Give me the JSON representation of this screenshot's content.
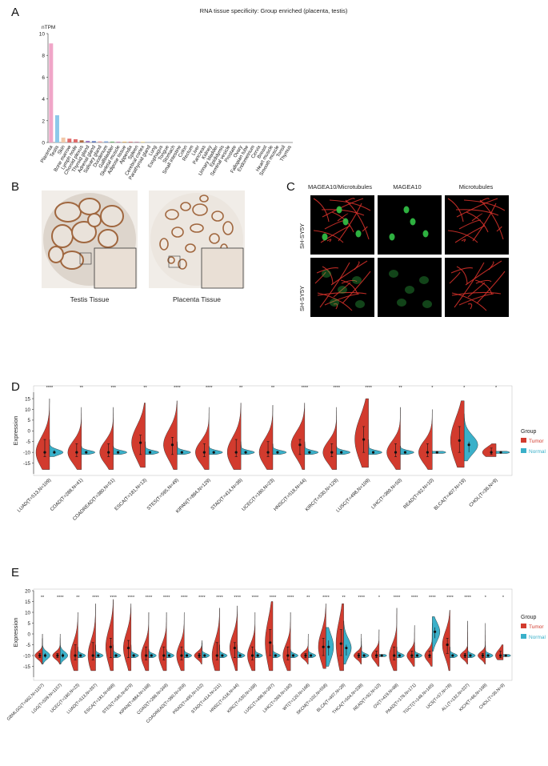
{
  "panels": {
    "a": "A",
    "b": "B",
    "c": "C",
    "d": "D",
    "e": "E"
  },
  "panel_b": {
    "captions": [
      "Testis Tissue",
      "Placenta Tissue"
    ],
    "colors": {
      "tissue": "#a0673f",
      "background": "#f1ede8",
      "stain": "#ddd5cc"
    }
  },
  "panel_c": {
    "column_headers": [
      "MAGEA10/Microtubules",
      "MAGEA10",
      "Microtubules"
    ],
    "row_labels": [
      "SH-SY5Y",
      "SH-SY5Y"
    ],
    "colors": {
      "red": "#d8312a",
      "green": "#33c447",
      "bg": "#000000"
    }
  },
  "legend": {
    "title": "Group",
    "tumor": "Tumor",
    "normal": "Normal"
  },
  "colors": {
    "tumor": "#d23b2e",
    "normal": "#3ab0c9"
  },
  "chart_data": [
    {
      "type": "bar",
      "title": "RNA tissue specificity: Group enriched (placenta, testis)",
      "ylabel": "nTPM",
      "ylim": [
        0,
        10
      ],
      "yticks": [
        0,
        2,
        4,
        6,
        8,
        10
      ],
      "categories": [
        "Placenta",
        "Testis",
        "Skin",
        "Bone marrow",
        "Lymph node",
        "Choroid plexus",
        "Thyroid gland",
        "Adrenal gland",
        "Salivary gland",
        "Duodenum",
        "Gallbladder",
        "Skeletal muscle",
        "Adipose tissue",
        "Appendix",
        "Spleen",
        "Cerebral cortex",
        "Parathyroid gland",
        "Lung",
        "Esophagus",
        "Tongue",
        "Stomach",
        "Small intestine",
        "Colon",
        "Rectum",
        "Liver",
        "Pancreas",
        "Kidney",
        "Urinary bladder",
        "Epididymis",
        "Seminal vesicle",
        "Prostate",
        "Ovary",
        "Fallopian tube",
        "Endometrium",
        "Cervix",
        "Breast",
        "Heart muscle",
        "Smooth muscle",
        "Tonsil",
        "Thymus"
      ],
      "values": [
        9.1,
        2.5,
        0.45,
        0.35,
        0.3,
        0.2,
        0.15,
        0.12,
        0.1,
        0.1,
        0.08,
        0.07,
        0.07,
        0.06,
        0.05,
        0.04,
        0.03,
        0,
        0,
        0,
        0,
        0,
        0,
        0,
        0,
        0,
        0,
        0,
        0,
        0,
        0,
        0,
        0,
        0,
        0,
        0,
        0,
        0,
        0,
        0
      ],
      "colors": [
        "#f0a6c8",
        "#8cc8ea",
        "#f2c8a8",
        "#e06a6a",
        "#e06a6a",
        "#b06a40",
        "#9a78c0",
        "#5570b8",
        "#e8a0a0",
        "#7aa0d8",
        "#70b070",
        "#c080b0",
        "#e0b060",
        "#d06060",
        "#a06080",
        "#e0c040",
        "#80a0c0",
        "#ccc",
        "#ccc",
        "#ccc",
        "#ccc",
        "#ccc",
        "#ccc",
        "#ccc",
        "#ccc",
        "#ccc",
        "#ccc",
        "#ccc",
        "#ccc",
        "#ccc",
        "#ccc",
        "#ccc",
        "#ccc",
        "#ccc",
        "#ccc",
        "#ccc",
        "#ccc",
        "#ccc",
        "#ccc",
        "#ccc"
      ]
    },
    {
      "type": "violin",
      "ylabel": "Expression",
      "ylim": [
        -20,
        18
      ],
      "yticks": [
        -15,
        -10,
        -5,
        0,
        5,
        10,
        15
      ],
      "series": [
        {
          "name": "Tumor"
        },
        {
          "name": "Normal"
        }
      ],
      "groups": [
        {
          "label": "LUAD(T=513,N=109)",
          "sig": "****",
          "t_med": -10,
          "t_q1": -12,
          "t_q3": -4,
          "t_min": -18,
          "t_max": 15,
          "n_med": -10,
          "n_q1": -10.5,
          "n_q3": -9,
          "n_min": -12,
          "n_max": -4
        },
        {
          "label": "COAD(T=288,N=41)",
          "sig": "**",
          "t_med": -10,
          "t_q1": -12,
          "t_q3": -6,
          "t_min": -18,
          "t_max": 11,
          "n_med": -10,
          "n_q1": -10.5,
          "n_q3": -9.5,
          "n_min": -11,
          "n_max": -7
        },
        {
          "label": "COADREAD(T=380,N=51)",
          "sig": "***",
          "t_med": -10,
          "t_q1": -12,
          "t_q3": -6,
          "t_min": -18,
          "t_max": 11,
          "n_med": -10,
          "n_q1": -10.5,
          "n_q3": -9.5,
          "n_min": -11,
          "n_max": -7
        },
        {
          "label": "ESCA(T=181,N=13)",
          "sig": "**",
          "t_med": -5.5,
          "t_q1": -11,
          "t_q3": -2,
          "t_min": -17,
          "t_max": 13,
          "n_med": -10,
          "n_q1": -10.5,
          "n_q3": -9.5,
          "n_min": -11,
          "n_max": -5
        },
        {
          "label": "STES(T=595,N=49)",
          "sig": "****",
          "t_med": -6.5,
          "t_q1": -11,
          "t_q3": -3,
          "t_min": -18,
          "t_max": 14,
          "n_med": -10,
          "n_q1": -10.5,
          "n_q3": -9.5,
          "n_min": -11,
          "n_max": -5
        },
        {
          "label": "KIPAN(T=884,N=129)",
          "sig": "****",
          "t_med": -10,
          "t_q1": -12,
          "t_q3": -6,
          "t_min": -18,
          "t_max": 11,
          "n_med": -10,
          "n_q1": -10.5,
          "n_q3": -9.5,
          "n_min": -11,
          "n_max": -7
        },
        {
          "label": "STAD(T=414,N=36)",
          "sig": "**",
          "t_med": -10,
          "t_q1": -12,
          "t_q3": -4,
          "t_min": -18,
          "t_max": 13,
          "n_med": -10,
          "n_q1": -10.5,
          "n_q3": -9.5,
          "n_min": -11,
          "n_max": -5
        },
        {
          "label": "UCEC(T=180,N=23)",
          "sig": "**",
          "t_med": -10,
          "t_q1": -12,
          "t_q3": -5,
          "t_min": -18,
          "t_max": 12,
          "n_med": -10,
          "n_q1": -10.5,
          "n_q3": -9.5,
          "n_min": -11,
          "n_max": -6
        },
        {
          "label": "HNSC(T=518,N=44)",
          "sig": "****",
          "t_med": -6.5,
          "t_q1": -11,
          "t_q3": -4,
          "t_min": -18,
          "t_max": 13,
          "n_med": -10,
          "n_q1": -10.5,
          "n_q3": -9.5,
          "n_min": -11,
          "n_max": -5
        },
        {
          "label": "KIRC(T=530,N=129)",
          "sig": "****",
          "t_med": -10,
          "t_q1": -12,
          "t_q3": -6,
          "t_min": -18,
          "t_max": 11,
          "n_med": -10,
          "n_q1": -10.5,
          "n_q3": -9.5,
          "n_min": -11,
          "n_max": -7
        },
        {
          "label": "LUSC(T=498,N=109)",
          "sig": "****",
          "t_med": -4,
          "t_q1": -10,
          "t_q3": 2,
          "t_min": -17,
          "t_max": 15,
          "n_med": -10,
          "n_q1": -10.5,
          "n_q3": -9.5,
          "n_min": -11,
          "n_max": -4
        },
        {
          "label": "LIHC(T=369,N=50)",
          "sig": "**",
          "t_med": -10,
          "t_q1": -12,
          "t_q3": -6,
          "t_min": -18,
          "t_max": 11,
          "n_med": -10,
          "n_q1": -10.5,
          "n_q3": -9.5,
          "n_min": -11,
          "n_max": -7
        },
        {
          "label": "READ(T=92,N=10)",
          "sig": "*",
          "t_med": -10,
          "t_q1": -12,
          "t_q3": -6,
          "t_min": -18,
          "t_max": 10,
          "n_med": -10,
          "n_q1": -10.3,
          "n_q3": -9.7,
          "n_min": -10.5,
          "n_max": -9.5
        },
        {
          "label": "BLCA(T=407,N=19)",
          "sig": "*",
          "t_med": -4.5,
          "t_q1": -10,
          "t_q3": 2,
          "t_min": -17,
          "t_max": 14,
          "n_med": -6.5,
          "n_q1": -10,
          "n_q3": -5,
          "n_min": -14,
          "n_max": 8
        },
        {
          "label": "CHOL(T=36,N=9)",
          "sig": "*",
          "t_med": -10,
          "t_q1": -11,
          "t_q3": -8,
          "t_min": -12,
          "t_max": -6,
          "n_med": -10,
          "n_q1": -10.3,
          "n_q3": -9.7,
          "n_min": -10.5,
          "n_max": -9.5
        }
      ]
    },
    {
      "type": "violin",
      "ylabel": "Expression",
      "ylim": [
        -20,
        20
      ],
      "yticks": [
        -15,
        -10,
        -5,
        0,
        5,
        10,
        15,
        20
      ],
      "series": [
        {
          "name": "Tumor"
        },
        {
          "name": "Normal"
        }
      ],
      "groups": [
        {
          "label": "GBMLGG(T=662,N=1157)",
          "sig": "**",
          "t_med": -10,
          "t_q1": -11,
          "t_q3": -9,
          "t_min": -14,
          "t_max": 0,
          "n_med": -10,
          "n_q1": -11,
          "n_q3": -9,
          "n_min": -14,
          "n_max": -2
        },
        {
          "label": "LGG(T=509,N=1157)",
          "sig": "****",
          "t_med": -10,
          "t_q1": -11,
          "t_q3": -9,
          "t_min": -14,
          "t_max": 0,
          "n_med": -10,
          "n_q1": -11,
          "n_q3": -9,
          "n_min": -14,
          "n_max": -2
        },
        {
          "label": "UCEC(T=180,N=23)",
          "sig": "**",
          "t_med": -10,
          "t_q1": -12,
          "t_q3": -5,
          "t_min": -17,
          "t_max": 10,
          "n_med": -10,
          "n_q1": -10.5,
          "n_q3": -9.5,
          "n_min": -11,
          "n_max": -6
        },
        {
          "label": "LUAD(T=513,N=397)",
          "sig": "****",
          "t_med": -10,
          "t_q1": -12,
          "t_q3": -4,
          "t_min": -17,
          "t_max": 14,
          "n_med": -10,
          "n_q1": -10.5,
          "n_q3": -9.5,
          "n_min": -11,
          "n_max": -5
        },
        {
          "label": "ESCA(T=181,N=668)",
          "sig": "****",
          "t_med": -6,
          "t_q1": -11,
          "t_q3": -2,
          "t_min": -17,
          "t_max": 16,
          "n_med": -10,
          "n_q1": -10.5,
          "n_q3": -9.5,
          "n_min": -11,
          "n_max": -5
        },
        {
          "label": "STES(T=595,N=879)",
          "sig": "****",
          "t_med": -6.5,
          "t_q1": -11,
          "t_q3": -3,
          "t_min": -17,
          "t_max": 14,
          "n_med": -10,
          "n_q1": -10.5,
          "n_q3": -9.5,
          "n_min": -11,
          "n_max": -5
        },
        {
          "label": "KIPAN(T=884,N=168)",
          "sig": "****",
          "t_med": -10,
          "t_q1": -12,
          "t_q3": -6,
          "t_min": -17,
          "t_max": 10,
          "n_med": -10,
          "n_q1": -10.5,
          "n_q3": -9.5,
          "n_min": -11,
          "n_max": -7
        },
        {
          "label": "COAD(T=288,N=349)",
          "sig": "****",
          "t_med": -10,
          "t_q1": -12,
          "t_q3": -6,
          "t_min": -17,
          "t_max": 10,
          "n_med": -10,
          "n_q1": -10.5,
          "n_q3": -9.5,
          "n_min": -11,
          "n_max": -7
        },
        {
          "label": "COADREAD(T=380,N=359)",
          "sig": "****",
          "t_med": -10,
          "t_q1": -12,
          "t_q3": -6,
          "t_min": -17,
          "t_max": 10,
          "n_med": -10,
          "n_q1": -10.5,
          "n_q3": -9.5,
          "n_min": -11,
          "n_max": -7
        },
        {
          "label": "PRAD(T=495,N=152)",
          "sig": "****",
          "t_med": -10,
          "t_q1": -11,
          "t_q3": -9,
          "t_min": -14,
          "t_max": -4,
          "n_med": -10,
          "n_q1": -10.5,
          "n_q3": -9.5,
          "n_min": -11,
          "n_max": -3
        },
        {
          "label": "STAD(T=414,N=211)",
          "sig": "****",
          "t_med": -10,
          "t_q1": -12,
          "t_q3": -4,
          "t_min": -17,
          "t_max": 12,
          "n_med": -10,
          "n_q1": -10.5,
          "n_q3": -9.5,
          "n_min": -11,
          "n_max": -5
        },
        {
          "label": "HNSC(T=518,N=44)",
          "sig": "****",
          "t_med": -6.5,
          "t_q1": -11,
          "t_q3": -4,
          "t_min": -17,
          "t_max": 13,
          "n_med": -10,
          "n_q1": -10.5,
          "n_q3": -9.5,
          "n_min": -11,
          "n_max": -5
        },
        {
          "label": "KIRC(T=530,N=168)",
          "sig": "****",
          "t_med": -10,
          "t_q1": -12,
          "t_q3": -6,
          "t_min": -17,
          "t_max": 10,
          "n_med": -10,
          "n_q1": -10.5,
          "n_q3": -9.5,
          "n_min": -11,
          "n_max": -7
        },
        {
          "label": "LUSC(T=498,N=397)",
          "sig": "****",
          "t_med": -4,
          "t_q1": -10,
          "t_q3": 2,
          "t_min": -17,
          "t_max": 15,
          "n_med": -10,
          "n_q1": -10.5,
          "n_q3": -9.5,
          "n_min": -11,
          "n_max": -5
        },
        {
          "label": "LIHC(T=369,N=160)",
          "sig": "****",
          "t_med": -10,
          "t_q1": -12,
          "t_q3": -6,
          "t_min": -17,
          "t_max": 10,
          "n_med": -10,
          "n_q1": -10.5,
          "n_q3": -9.5,
          "n_min": -11,
          "n_max": -7
        },
        {
          "label": "WT(T=120,N=168)",
          "sig": "**",
          "t_med": -10,
          "t_q1": -11,
          "t_q3": -9,
          "t_min": -14,
          "t_max": 0,
          "n_med": -10,
          "n_q1": -10.5,
          "n_q3": -9.5,
          "n_min": -11,
          "n_max": -7
        },
        {
          "label": "SKCM(T=102,N=558)",
          "sig": "****",
          "t_med": -6,
          "t_q1": -10,
          "t_q3": -2,
          "t_min": -16,
          "t_max": 14,
          "n_med": -6,
          "n_q1": -10,
          "n_q3": -3,
          "n_min": -15,
          "n_max": 3
        },
        {
          "label": "BLCA(T=407,N=28)",
          "sig": "**",
          "t_med": -4.5,
          "t_q1": -10,
          "t_q3": 2,
          "t_min": -17,
          "t_max": 14,
          "n_med": -6.5,
          "n_q1": -10,
          "n_q3": -5,
          "n_min": -14,
          "n_max": 6
        },
        {
          "label": "THCA(T=504,N=338)",
          "sig": "****",
          "t_med": -10,
          "t_q1": -11,
          "t_q3": -9,
          "t_min": -14,
          "t_max": 0,
          "n_med": -10,
          "n_q1": -10.5,
          "n_q3": -9.5,
          "n_min": -11,
          "n_max": -2
        },
        {
          "label": "READ(T=92,N=10)",
          "sig": "*",
          "t_med": -10,
          "t_q1": -11,
          "t_q3": -8,
          "t_min": -15,
          "t_max": 2,
          "n_med": -10,
          "n_q1": -10.3,
          "n_q3": -9.7,
          "n_min": -10.5,
          "n_max": -9.5
        },
        {
          "label": "OV(T=419,N=88)",
          "sig": "****",
          "t_med": -10,
          "t_q1": -12,
          "t_q3": -6,
          "t_min": -17,
          "t_max": 12,
          "n_med": -10,
          "n_q1": -10.5,
          "n_q3": -9.5,
          "n_min": -11,
          "n_max": -6
        },
        {
          "label": "PAAD(T=178,N=171)",
          "sig": "****",
          "t_med": -10,
          "t_q1": -11,
          "t_q3": -8,
          "t_min": -15,
          "t_max": 4,
          "n_med": -10,
          "n_q1": -10.5,
          "n_q3": -9.5,
          "n_min": -11,
          "n_max": -4
        },
        {
          "label": "TGCT(T=148,N=165)",
          "sig": "****",
          "t_med": -10,
          "t_q1": -11,
          "t_q3": -8,
          "t_min": -15,
          "t_max": 5,
          "n_med": 1,
          "n_q1": -2,
          "n_q3": 3,
          "n_min": -8,
          "n_max": 8
        },
        {
          "label": "UCS(T=57,N=78)",
          "sig": "****",
          "t_med": -5,
          "t_q1": -9,
          "t_q3": -2,
          "t_min": -17,
          "t_max": 11,
          "n_med": -10,
          "n_q1": -10.5,
          "n_q3": -9.5,
          "n_min": -11,
          "n_max": -6
        },
        {
          "label": "ALL(T=132,N=337)",
          "sig": "****",
          "t_med": -10,
          "t_q1": -11,
          "t_q3": -9,
          "t_min": -14,
          "t_max": 6,
          "n_med": -10,
          "n_q1": -10.5,
          "n_q3": -9.5,
          "n_min": -11,
          "n_max": -6
        },
        {
          "label": "KICH(T=66,N=168)",
          "sig": "*",
          "t_med": -10,
          "t_q1": -11,
          "t_q3": -9,
          "t_min": -14,
          "t_max": 5,
          "n_med": -10,
          "n_q1": -10.5,
          "n_q3": -9.5,
          "n_min": -11,
          "n_max": -5
        },
        {
          "label": "CHOL(T=36,N=9)",
          "sig": "*",
          "t_med": -10,
          "t_q1": -11,
          "t_q3": -8,
          "t_min": -12,
          "t_max": -5,
          "n_med": -10,
          "n_q1": -10.3,
          "n_q3": -9.7,
          "n_min": -10.5,
          "n_max": -9.5
        }
      ]
    }
  ]
}
